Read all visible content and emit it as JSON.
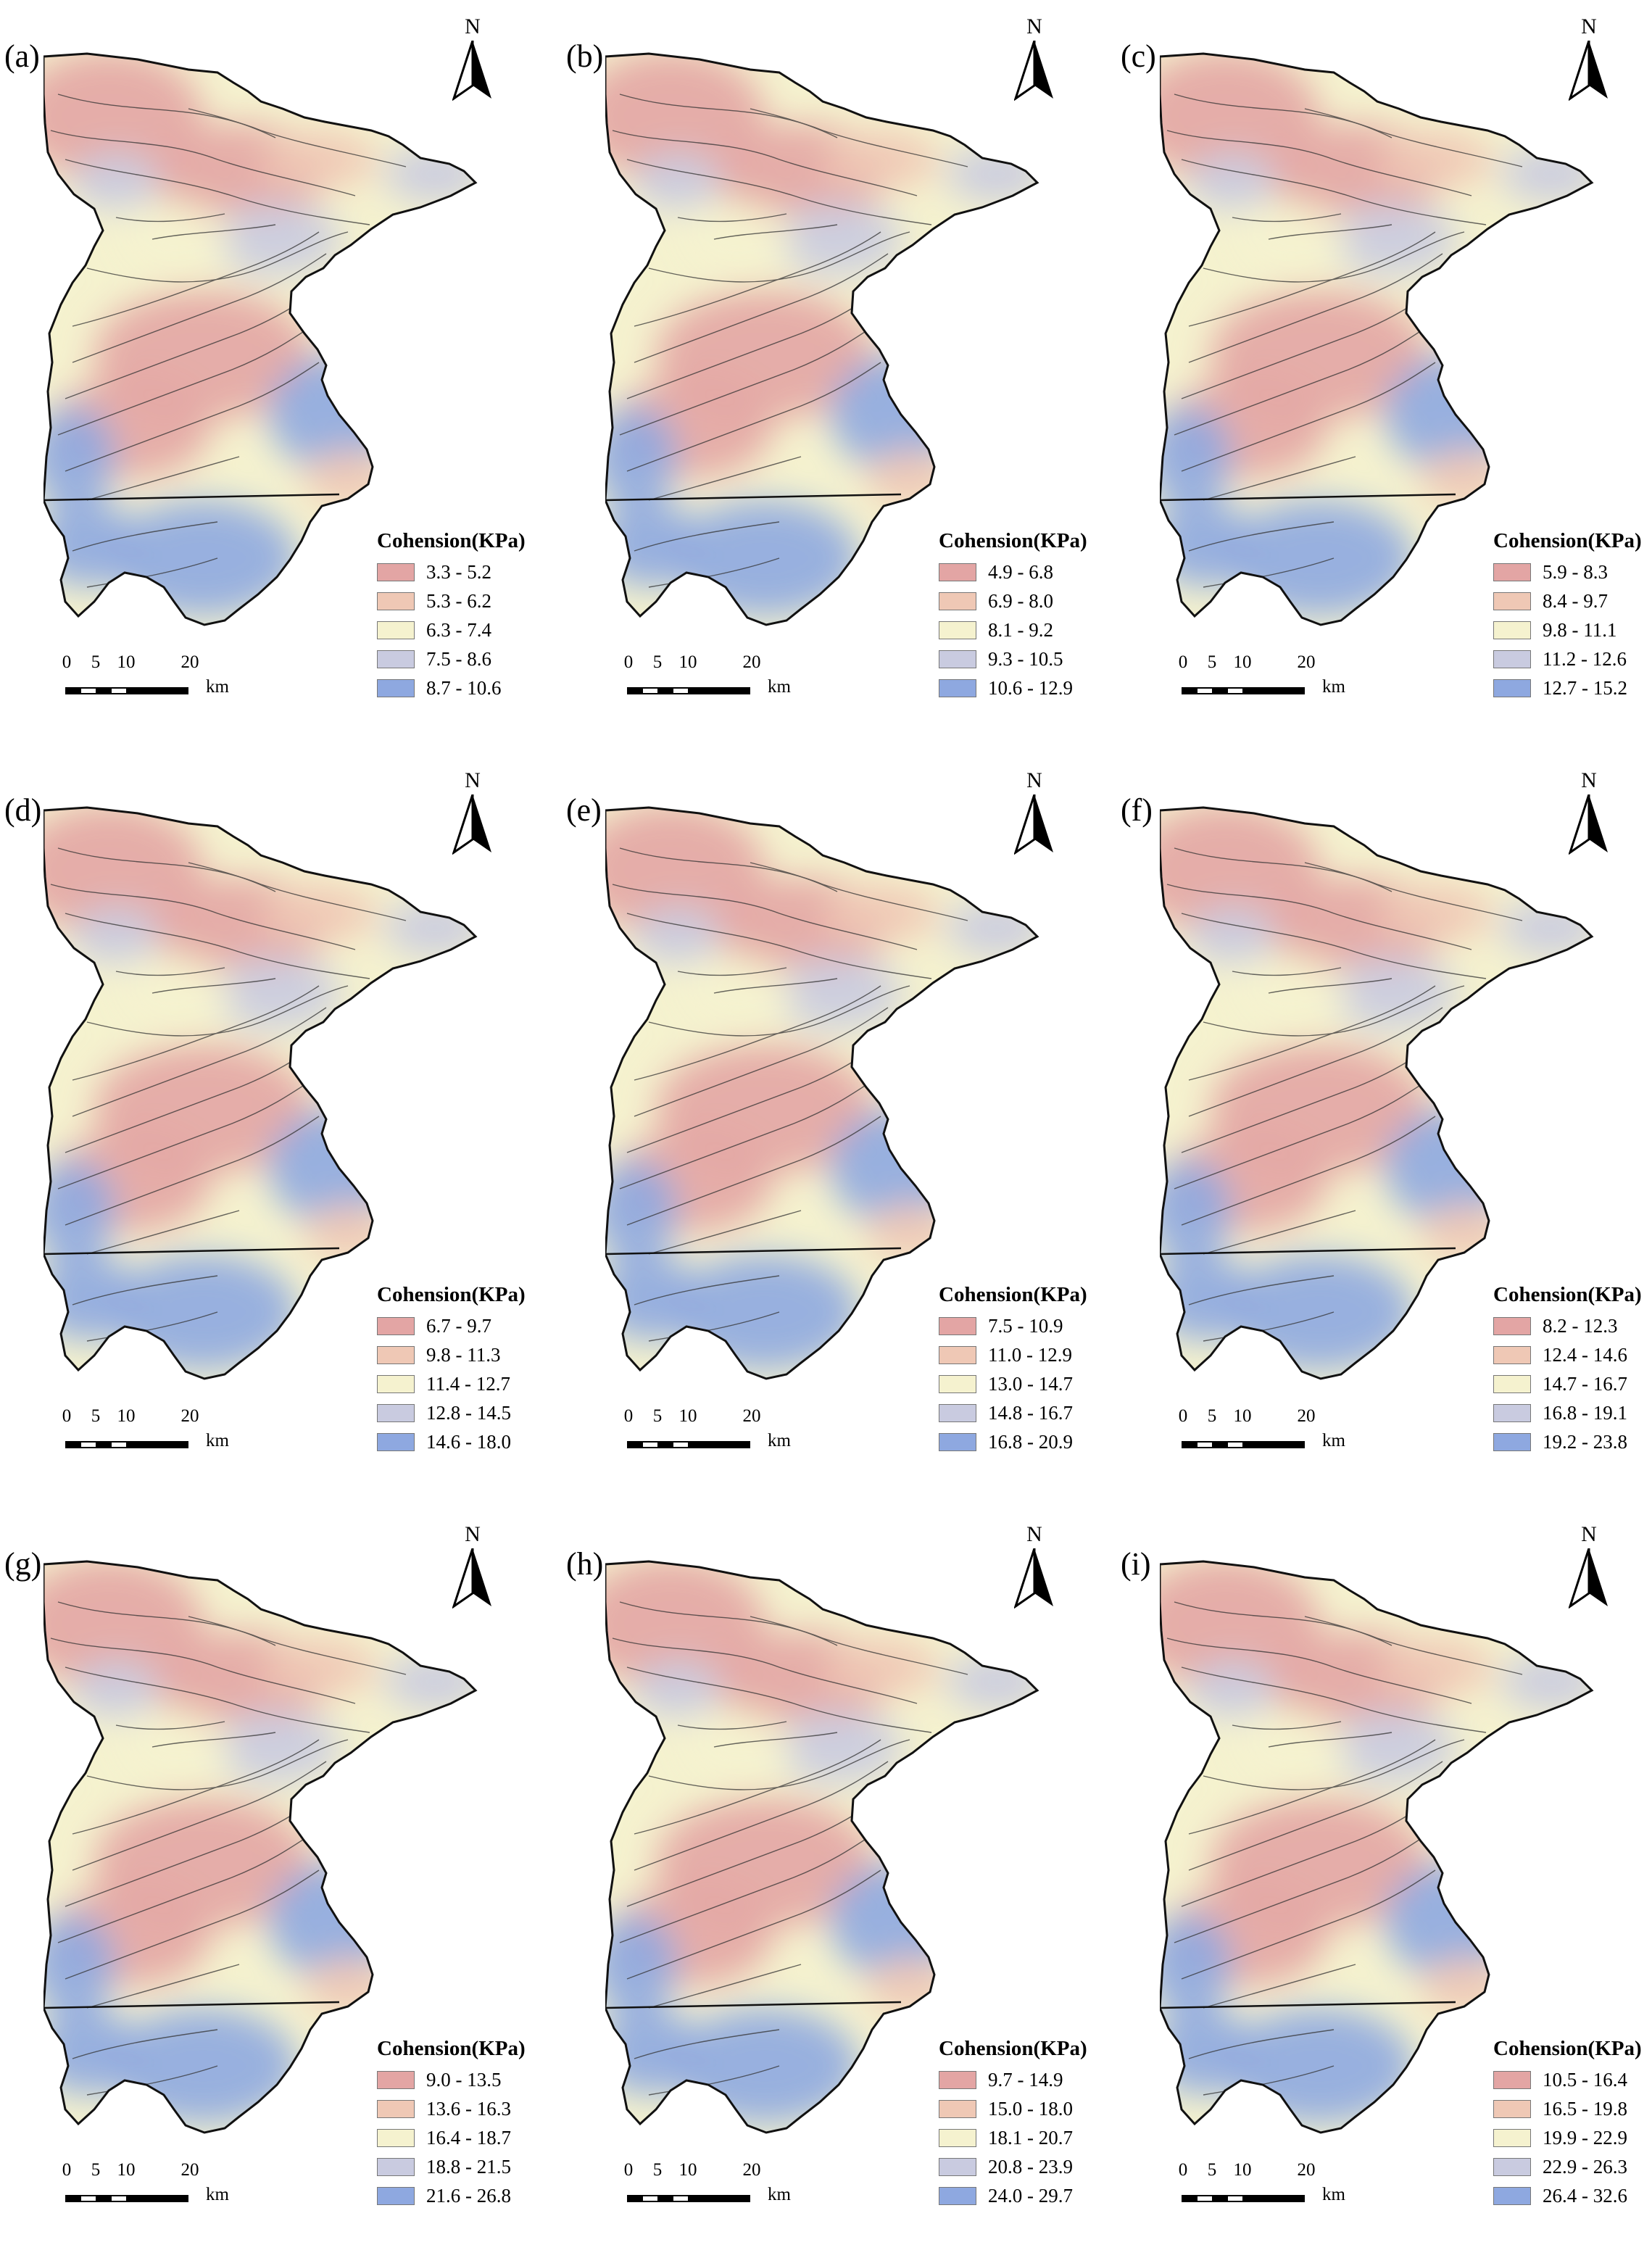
{
  "figure": {
    "north_label": "N",
    "scale": {
      "ticks": [
        "0",
        "5",
        "10",
        "20"
      ],
      "unit": "km"
    },
    "legend_title": "Cohension(KPa)",
    "class_colors": [
      "#e3a5a4",
      "#efc8b5",
      "#f5f2cf",
      "#c9cbe0",
      "#8ea8e0"
    ],
    "icons": [
      "north-arrow-icon",
      "scale-bar-icon"
    ]
  },
  "panels": [
    {
      "label": "(a)",
      "legend": [
        "3.3 - 5.2",
        "5.3 - 6.2",
        "6.3 - 7.4",
        "7.5 - 8.6",
        "8.7 - 10.6"
      ]
    },
    {
      "label": "(b)",
      "legend": [
        "4.9 - 6.8",
        "6.9 - 8.0",
        "8.1 - 9.2",
        "9.3 - 10.5",
        "10.6 - 12.9"
      ]
    },
    {
      "label": "(c)",
      "legend": [
        "5.9 - 8.3",
        "8.4 - 9.7",
        "9.8 - 11.1",
        "11.2 - 12.6",
        "12.7 - 15.2"
      ]
    },
    {
      "label": "(d)",
      "legend": [
        "6.7 - 9.7",
        "9.8 - 11.3",
        "11.4 - 12.7",
        "12.8 - 14.5",
        "14.6 - 18.0"
      ]
    },
    {
      "label": "(e)",
      "legend": [
        "7.5 - 10.9",
        "11.0 - 12.9",
        "13.0 - 14.7",
        "14.8 - 16.7",
        "16.8 - 20.9"
      ]
    },
    {
      "label": "(f)",
      "legend": [
        "8.2 - 12.3",
        "12.4 - 14.6",
        "14.7 - 16.7",
        "16.8 - 19.1",
        "19.2 - 23.8"
      ]
    },
    {
      "label": "(g)",
      "legend": [
        "9.0 - 13.5",
        "13.6 - 16.3",
        "16.4 - 18.7",
        "18.8 - 21.5",
        "21.6 - 26.8"
      ]
    },
    {
      "label": "(h)",
      "legend": [
        "9.7 - 14.9",
        "15.0 - 18.0",
        "18.1 - 20.7",
        "20.8 - 23.9",
        "24.0 - 29.7"
      ]
    },
    {
      "label": "(i)",
      "legend": [
        "10.5 - 16.4",
        "16.5 - 19.8",
        "19.9 - 22.9",
        "22.9 - 26.3",
        "26.4 - 32.6"
      ]
    }
  ]
}
